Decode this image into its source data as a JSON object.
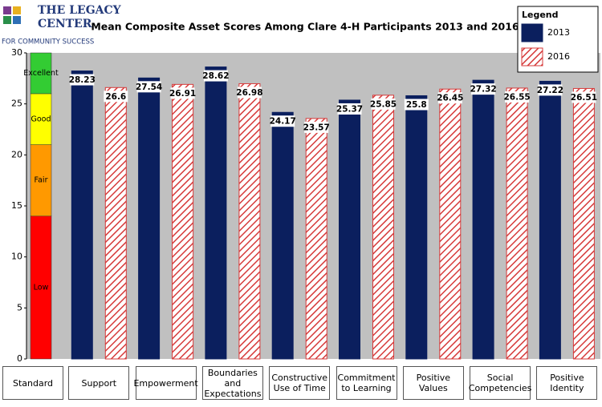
{
  "logo": {
    "lines": [
      "THE LEGACY",
      "CENTER",
      "FOR COMMUNITY SUCCESS"
    ]
  },
  "chart_data": {
    "type": "bar",
    "title": "Mean Composite Asset Scores Among Clare 4-H Participants 2013 and 2016",
    "categories": [
      "Standard",
      "Support",
      "Empowerment",
      "Boundaries and Expectations",
      "Constructive Use of Time",
      "Commitment to Learning",
      "Positive Values",
      "Social Competencies",
      "Positive Identity"
    ],
    "series": [
      {
        "name": "2013",
        "color": "#0b1f5e",
        "values": [
          null,
          28.23,
          27.54,
          28.62,
          24.17,
          25.37,
          25.8,
          27.32,
          27.22
        ]
      },
      {
        "name": "2016",
        "color": "#d63a3a",
        "hatched": true,
        "values": [
          null,
          26.6,
          26.91,
          26.98,
          23.57,
          25.85,
          26.45,
          26.55,
          26.51
        ]
      }
    ],
    "standard": [
      {
        "name": "Low",
        "color": "#ff0000",
        "value": 14
      },
      {
        "name": "Fair",
        "color": "#ff9900",
        "value": 7
      },
      {
        "name": "Good",
        "color": "#ffff00",
        "value": 5
      },
      {
        "name": "Excellent",
        "color": "#33cc33",
        "value": 4
      }
    ],
    "legend_title": "Legend",
    "legend_position": "top-right",
    "ylim": [
      0,
      30
    ],
    "yticks": [
      0,
      5,
      10,
      15,
      20,
      25,
      30
    ],
    "grid": false
  }
}
